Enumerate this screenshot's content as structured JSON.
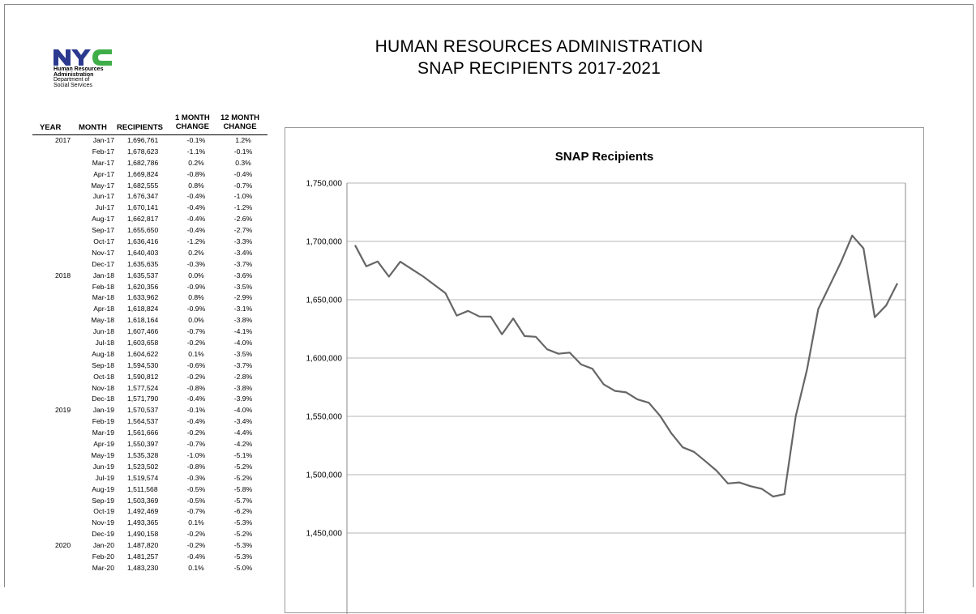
{
  "logo": {
    "mark": "NYC",
    "lines": [
      "Human Resources",
      "Administration",
      "Department of",
      "Social Services"
    ],
    "colors": {
      "blue": "#2b3a8f",
      "green": "#3fae49"
    }
  },
  "title": {
    "line1": "HUMAN RESOURCES ADMINISTRATION",
    "line2": "SNAP RECIPIENTS 2017-2021"
  },
  "table": {
    "headers": {
      "year": "YEAR",
      "month": "MONTH",
      "recipients": "RECIPIENTS",
      "one_month_l1": "1 MONTH",
      "one_month_l2": "CHANGE",
      "twelve_month_l1": "12 MONTH",
      "twelve_month_l2": "CHANGE"
    },
    "rows": [
      [
        "2017",
        "Jan-17",
        "1,696,761",
        "-0.1%",
        "1.2%"
      ],
      [
        "",
        "Feb-17",
        "1,678,623",
        "-1.1%",
        "-0.1%"
      ],
      [
        "",
        "Mar-17",
        "1,682,786",
        "0.2%",
        "0.3%"
      ],
      [
        "",
        "Apr-17",
        "1,669,824",
        "-0.8%",
        "-0.4%"
      ],
      [
        "",
        "May-17",
        "1,682,555",
        "0.8%",
        "-0.7%"
      ],
      [
        "",
        "Jun-17",
        "1,676,347",
        "-0.4%",
        "-1.0%"
      ],
      [
        "",
        "Jul-17",
        "1,670,141",
        "-0.4%",
        "-1.2%"
      ],
      [
        "",
        "Aug-17",
        "1,662,817",
        "-0.4%",
        "-2.6%"
      ],
      [
        "",
        "Sep-17",
        "1,655,650",
        "-0.4%",
        "-2.7%"
      ],
      [
        "",
        "Oct-17",
        "1,636,416",
        "-1.2%",
        "-3.3%"
      ],
      [
        "",
        "Nov-17",
        "1,640,403",
        "0.2%",
        "-3.4%"
      ],
      [
        "",
        "Dec-17",
        "1,635,635",
        "-0.3%",
        "-3.7%"
      ],
      [
        "2018",
        "Jan-18",
        "1,635,537",
        "0.0%",
        "-3.6%"
      ],
      [
        "",
        "Feb-18",
        "1,620,356",
        "-0.9%",
        "-3.5%"
      ],
      [
        "",
        "Mar-18",
        "1,633,962",
        "0.8%",
        "-2.9%"
      ],
      [
        "",
        "Apr-18",
        "1,618,824",
        "-0.9%",
        "-3.1%"
      ],
      [
        "",
        "May-18",
        "1,618,164",
        "0.0%",
        "-3.8%"
      ],
      [
        "",
        "Jun-18",
        "1,607,466",
        "-0.7%",
        "-4.1%"
      ],
      [
        "",
        "Jul-18",
        "1,603,658",
        "-0.2%",
        "-4.0%"
      ],
      [
        "",
        "Aug-18",
        "1,604,622",
        "0.1%",
        "-3.5%"
      ],
      [
        "",
        "Sep-18",
        "1,594,530",
        "-0.6%",
        "-3.7%"
      ],
      [
        "",
        "Oct-18",
        "1,590,812",
        "-0.2%",
        "-2.8%"
      ],
      [
        "",
        "Nov-18",
        "1,577,524",
        "-0.8%",
        "-3.8%"
      ],
      [
        "",
        "Dec-18",
        "1,571,790",
        "-0.4%",
        "-3.9%"
      ],
      [
        "2019",
        "Jan-19",
        "1,570,537",
        "-0.1%",
        "-4.0%"
      ],
      [
        "",
        "Feb-19",
        "1,564,537",
        "-0.4%",
        "-3.4%"
      ],
      [
        "",
        "Mar-19",
        "1,561,666",
        "-0.2%",
        "-4.4%"
      ],
      [
        "",
        "Apr-19",
        "1,550,397",
        "-0.7%",
        "-4.2%"
      ],
      [
        "",
        "May-19",
        "1,535,328",
        "-1.0%",
        "-5.1%"
      ],
      [
        "",
        "Jun-19",
        "1,523,502",
        "-0.8%",
        "-5.2%"
      ],
      [
        "",
        "Jul-19",
        "1,519,574",
        "-0.3%",
        "-5.2%"
      ],
      [
        "",
        "Aug-19",
        "1,511,568",
        "-0.5%",
        "-5.8%"
      ],
      [
        "",
        "Sep-19",
        "1,503,369",
        "-0.5%",
        "-5.7%"
      ],
      [
        "",
        "Oct-19",
        "1,492,469",
        "-0.7%",
        "-6.2%"
      ],
      [
        "",
        "Nov-19",
        "1,493,365",
        "0.1%",
        "-5.3%"
      ],
      [
        "",
        "Dec-19",
        "1,490,158",
        "-0.2%",
        "-5.2%"
      ],
      [
        "2020",
        "Jan-20",
        "1,487,820",
        "-0.2%",
        "-5.3%"
      ],
      [
        "",
        "Feb-20",
        "1,481,257",
        "-0.4%",
        "-5.3%"
      ],
      [
        "",
        "Mar-20",
        "1,483,230",
        "0.1%",
        "-5.0%"
      ]
    ]
  },
  "chart_data": {
    "type": "line",
    "title": "SNAP Recipients",
    "xlabel": "",
    "ylabel": "",
    "ylim": [
      1450000,
      1750000
    ],
    "yticks": [
      1750000,
      1700000,
      1650000,
      1600000,
      1550000,
      1500000,
      1450000
    ],
    "ytick_labels": [
      "1,750,000",
      "1,700,000",
      "1,650,000",
      "1,600,000",
      "1,550,000",
      "1,500,000",
      "1,450,000"
    ],
    "grid": true,
    "line_color": "#666666",
    "series": [
      {
        "values": [
          1696761,
          1678623,
          1682786,
          1669824,
          1682555,
          1676347,
          1670141,
          1662817,
          1655650,
          1636416,
          1640403,
          1635635,
          1635537,
          1620356,
          1633962,
          1618824,
          1618164,
          1607466,
          1603658,
          1604622,
          1594530,
          1590812,
          1577524,
          1571790,
          1570537,
          1564537,
          1561666,
          1550397,
          1535328,
          1523502,
          1519574,
          1511568,
          1503369,
          1492469,
          1493365,
          1490158,
          1487820,
          1481257,
          1483230,
          1550000,
          1590000,
          1642000,
          1662000,
          1682000,
          1705000,
          1694000,
          1635000,
          1645000,
          1664000
        ]
      }
    ]
  }
}
